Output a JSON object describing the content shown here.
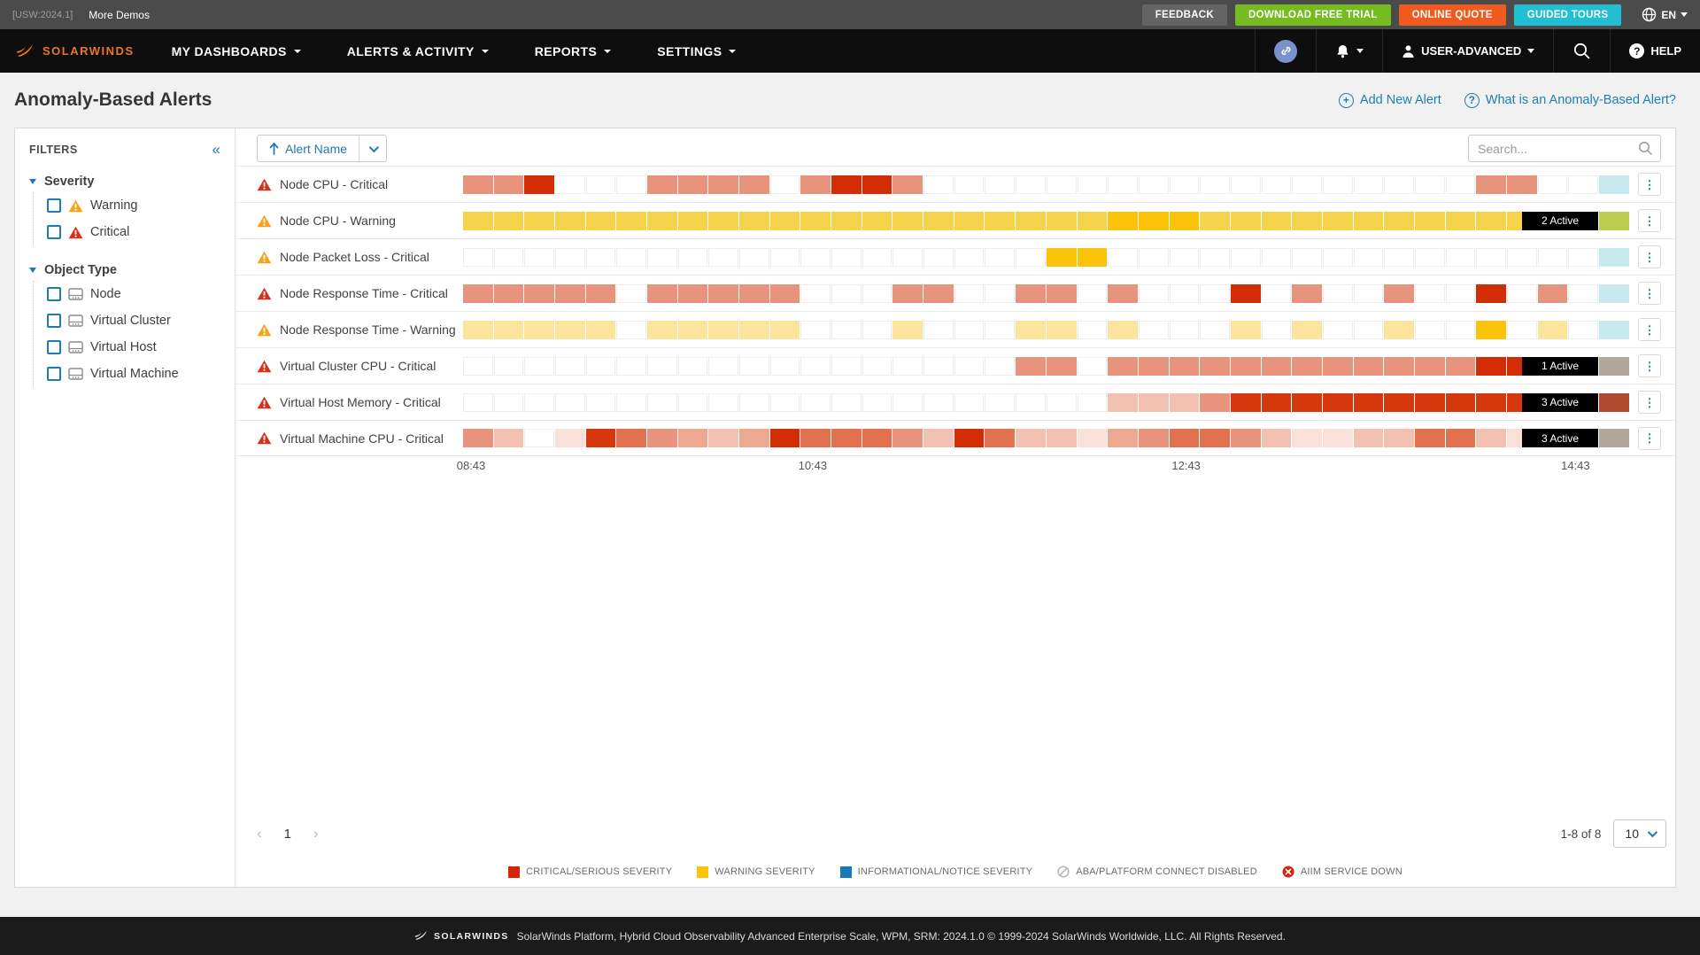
{
  "utility_bar": {
    "version": "[USW:2024.1]",
    "more_demos": "More Demos",
    "buttons": [
      {
        "label": "FEEDBACK",
        "color": "#646464"
      },
      {
        "label": "DOWNLOAD FREE TRIAL",
        "color": "#76bc21"
      },
      {
        "label": "ONLINE QUOTE",
        "color": "#f05a1e"
      },
      {
        "label": "GUIDED TOURS",
        "color": "#22bfd4"
      }
    ],
    "language": "EN"
  },
  "navbar": {
    "brand": "SOLARWINDS",
    "items": [
      {
        "label": "MY DASHBOARDS"
      },
      {
        "label": "ALERTS & ACTIVITY"
      },
      {
        "label": "REPORTS"
      },
      {
        "label": "SETTINGS"
      }
    ],
    "user_label": "USER-ADVANCED",
    "help_label": "HELP"
  },
  "page": {
    "title": "Anomaly-Based Alerts",
    "add_new_alert": "Add New Alert",
    "what_is_link": "What is an Anomaly-Based Alert?"
  },
  "filters": {
    "title": "FILTERS",
    "sections": [
      {
        "label": "Severity",
        "items": [
          {
            "label": "Warning",
            "icon": "warning-triangle"
          },
          {
            "label": "Critical",
            "icon": "critical-triangle"
          }
        ]
      },
      {
        "label": "Object Type",
        "items": [
          {
            "label": "Node",
            "icon": "node"
          },
          {
            "label": "Virtual Cluster",
            "icon": "node"
          },
          {
            "label": "Virtual Host",
            "icon": "node"
          },
          {
            "label": "Virtual Machine",
            "icon": "node"
          }
        ]
      }
    ]
  },
  "toolbar": {
    "sort_label": "Alert Name",
    "search_placeholder": "Search..."
  },
  "alerts": {
    "palette": {
      "w": "#ffffff",
      "s": "#e8937b",
      "ls": "#eda98f",
      "lp": "#f3c1b1",
      "vl": "#f9e1d9",
      "mr": "#e2714f",
      "r": "#d5380c",
      "dr": "#d22d05",
      "g": "#f6d34a",
      "a": "#fbc30a",
      "ly": "#fbe49c"
    },
    "end_palette": {
      "cyan": "#c8eaee",
      "olive": "#bccc4f",
      "tan": "#b2a79b",
      "brownred": "#af4a2d"
    },
    "severity_colors": {
      "critical": "#d8311b",
      "warning": "#f7a21b"
    },
    "rows": [
      {
        "name": "Node CPU - Critical",
        "severity": "critical",
        "badge": null,
        "end": "cyan",
        "cells": "s s dr w w w s s s s w s dr dr s w w w w w w w w w w w w w w w w w w s s w w"
      },
      {
        "name": "Node CPU - Warning",
        "severity": "warning",
        "badge": "2 Active",
        "end": "olive",
        "cells": "g g g g g g g g g g g g g g g g g g g g g a a a g g g g g g g g g g g g g"
      },
      {
        "name": "Node Packet Loss - Critical",
        "severity": "warning",
        "badge": null,
        "end": "cyan",
        "cells": "w w w w w w w w w w w w w w w w w w w a a w w w w w w w w w w w w w w w w"
      },
      {
        "name": "Node Response Time - Critical",
        "severity": "critical",
        "badge": null,
        "end": "cyan",
        "cells": "s s s s s w s s s s s w w w s s w w s s w s w w w dr w s w w s w w dr w s w"
      },
      {
        "name": "Node Response Time - Warning",
        "severity": "warning",
        "badge": null,
        "end": "cyan",
        "cells": "ly ly ly ly ly w ly ly ly ly ly w w w ly w w w ly ly w ly w w w ly w ly w w ly w w a w ly w"
      },
      {
        "name": "Virtual Cluster CPU - Critical",
        "severity": "critical",
        "badge": "1 Active",
        "end": "tan",
        "cells": "w w w w w w w w w w w w w w w w w w s s w s s s s s s s s s s s s dr dr s s"
      },
      {
        "name": "Virtual Host Memory - Critical",
        "severity": "critical",
        "badge": "3 Active",
        "end": "brownred",
        "cells": "w w w w w w w w w w w w w w w w w w w w w lp lp lp s r r r r r r r r r r r r"
      },
      {
        "name": "Virtual Machine CPU - Critical",
        "severity": "critical",
        "badge": "3 Active",
        "end": "tan",
        "cells": "s lp w vl r mr s ls lp ls dr mr mr mr s lp dr mr lp lp vl ls s mr mr s lp vl vl lp lp mr mr lp vl mr lp"
      }
    ],
    "time_axis": [
      {
        "label": "08:43",
        "pos_pct": 0
      },
      {
        "label": "10:43",
        "pos_pct": 30.1
      },
      {
        "label": "12:43",
        "pos_pct": 63.0
      },
      {
        "label": "14:43",
        "pos_pct": 97.3
      }
    ]
  },
  "pagination": {
    "page": "1",
    "range": "1-8 of 8",
    "page_size": "10"
  },
  "legend": [
    {
      "label": "CRITICAL/SERIOUS SEVERITY",
      "swatch": "square",
      "color": "#d6240b"
    },
    {
      "label": "WARNING SEVERITY",
      "swatch": "square",
      "color": "#fbc30a"
    },
    {
      "label": "INFORMATIONAL/NOTICE SEVERITY",
      "swatch": "square",
      "color": "#1779b5"
    },
    {
      "label": "ABA/PLATFORM CONNECT DISABLED",
      "swatch": "circle-slash",
      "color": "#b5b5b5"
    },
    {
      "label": "AIIM SERVICE DOWN",
      "swatch": "circle-x",
      "color": "#d6240b"
    }
  ],
  "footer": {
    "brand": "SOLARWINDS",
    "text": "SolarWinds Platform, Hybrid Cloud Observability Advanced Enterprise Scale, WPM, SRM: 2024.1.0 © 1999-2024 SolarWinds Worldwide, LLC. All Rights Reserved."
  }
}
